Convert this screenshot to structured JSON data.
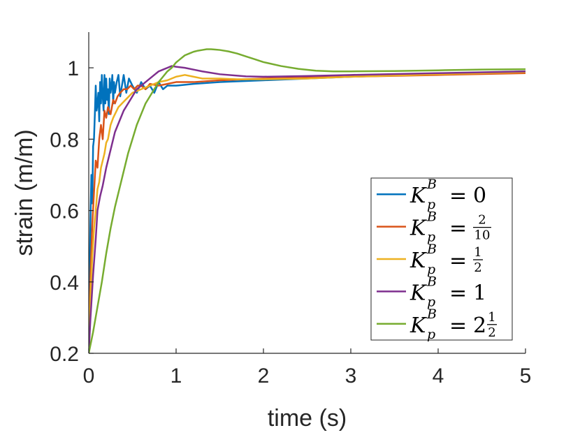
{
  "chart_data": {
    "type": "line",
    "xlabel": "time (s)",
    "ylabel": "strain (m/m)",
    "xlim": [
      0,
      5
    ],
    "ylim": [
      0.2,
      1.1
    ],
    "xticks": [
      0,
      1,
      2,
      3,
      4,
      5
    ],
    "xtick_labels": [
      "0",
      "1",
      "2",
      "3",
      "4",
      "5"
    ],
    "yticks": [
      0.2,
      0.4,
      0.6,
      0.8,
      1.0
    ],
    "ytick_labels": [
      "0.2",
      "0.4",
      "0.6",
      "0.8",
      "1"
    ],
    "grid": false,
    "legend_position": "lower-right",
    "series": [
      {
        "name": "K_p^B = 0",
        "legend": {
          "sym": "K",
          "sub": "p",
          "sup": "B",
          "value": "0"
        },
        "color": "#0072BD",
        "x": [
          0,
          0.01,
          0.02,
          0.03,
          0.04,
          0.05,
          0.06,
          0.07,
          0.08,
          0.09,
          0.1,
          0.11,
          0.12,
          0.13,
          0.14,
          0.15,
          0.16,
          0.17,
          0.18,
          0.19,
          0.2,
          0.21,
          0.22,
          0.23,
          0.24,
          0.25,
          0.26,
          0.27,
          0.28,
          0.29,
          0.3,
          0.32,
          0.34,
          0.36,
          0.38,
          0.4,
          0.43,
          0.46,
          0.5,
          0.55,
          0.6,
          0.65,
          0.7,
          0.75,
          0.8,
          0.85,
          0.9,
          1.0,
          1.2,
          1.5,
          2.0,
          3.0,
          4.0,
          5.0
        ],
        "y": [
          0.2,
          0.42,
          0.58,
          0.7,
          0.62,
          0.78,
          0.8,
          0.87,
          0.95,
          0.88,
          0.9,
          0.93,
          0.85,
          0.96,
          0.9,
          0.98,
          0.92,
          0.88,
          0.98,
          0.9,
          0.97,
          0.91,
          0.94,
          0.87,
          0.97,
          0.93,
          0.95,
          0.98,
          0.9,
          0.96,
          0.93,
          0.96,
          0.98,
          0.92,
          0.95,
          0.98,
          0.93,
          0.97,
          0.95,
          0.93,
          0.96,
          0.94,
          0.95,
          0.93,
          0.96,
          0.94,
          0.95,
          0.95,
          0.955,
          0.96,
          0.965,
          0.975,
          0.983,
          0.99
        ]
      },
      {
        "name": "K_p^B = 2/10",
        "legend": {
          "sym": "K",
          "sub": "p",
          "sup": "B",
          "frac": [
            "2",
            "10"
          ]
        },
        "color": "#D95319",
        "x": [
          0,
          0.02,
          0.04,
          0.06,
          0.08,
          0.1,
          0.12,
          0.14,
          0.16,
          0.18,
          0.2,
          0.22,
          0.25,
          0.28,
          0.3,
          0.33,
          0.36,
          0.4,
          0.44,
          0.48,
          0.52,
          0.56,
          0.6,
          0.65,
          0.7,
          0.8,
          0.9,
          1.0,
          1.2,
          1.5,
          2.0,
          3.0,
          4.0,
          5.0
        ],
        "y": [
          0.2,
          0.42,
          0.56,
          0.65,
          0.74,
          0.72,
          0.8,
          0.84,
          0.8,
          0.88,
          0.86,
          0.89,
          0.87,
          0.91,
          0.9,
          0.92,
          0.93,
          0.94,
          0.94,
          0.95,
          0.94,
          0.95,
          0.95,
          0.94,
          0.955,
          0.95,
          0.955,
          0.96,
          0.96,
          0.965,
          0.97,
          0.975,
          0.98,
          0.985
        ]
      },
      {
        "name": "K_p^B = 1/2",
        "legend": {
          "sym": "K",
          "sub": "p",
          "sup": "B",
          "frac": [
            "1",
            "2"
          ]
        },
        "color": "#EDB120",
        "x": [
          0,
          0.02,
          0.04,
          0.06,
          0.08,
          0.1,
          0.12,
          0.14,
          0.16,
          0.18,
          0.2,
          0.22,
          0.25,
          0.28,
          0.3,
          0.34,
          0.38,
          0.42,
          0.46,
          0.5,
          0.55,
          0.6,
          0.65,
          0.7,
          0.75,
          0.8,
          0.9,
          1.0,
          1.1,
          1.2,
          1.3,
          1.5,
          1.7,
          2.0,
          2.5,
          3.0,
          4.0,
          5.0
        ],
        "y": [
          0.2,
          0.36,
          0.47,
          0.55,
          0.6,
          0.66,
          0.68,
          0.72,
          0.74,
          0.76,
          0.79,
          0.8,
          0.84,
          0.86,
          0.87,
          0.89,
          0.9,
          0.91,
          0.92,
          0.93,
          0.935,
          0.94,
          0.945,
          0.95,
          0.955,
          0.96,
          0.965,
          0.975,
          0.98,
          0.975,
          0.97,
          0.97,
          0.968,
          0.968,
          0.97,
          0.975,
          0.982,
          0.988
        ]
      },
      {
        "name": "K_p^B = 1",
        "legend": {
          "sym": "K",
          "sub": "p",
          "sup": "B",
          "value": "1"
        },
        "color": "#7E2F8E",
        "x": [
          0,
          0.02,
          0.05,
          0.08,
          0.1,
          0.13,
          0.16,
          0.2,
          0.25,
          0.3,
          0.35,
          0.4,
          0.45,
          0.5,
          0.55,
          0.6,
          0.65,
          0.7,
          0.75,
          0.8,
          0.85,
          0.9,
          0.95,
          1.0,
          1.1,
          1.2,
          1.3,
          1.5,
          1.8,
          2.0,
          2.5,
          3.0,
          4.0,
          5.0
        ],
        "y": [
          0.2,
          0.3,
          0.42,
          0.52,
          0.6,
          0.64,
          0.67,
          0.72,
          0.77,
          0.82,
          0.85,
          0.88,
          0.9,
          0.92,
          0.94,
          0.95,
          0.96,
          0.97,
          0.98,
          0.99,
          0.995,
          1.0,
          1.005,
          1.003,
          1.0,
          0.995,
          0.99,
          0.982,
          0.976,
          0.975,
          0.977,
          0.98,
          0.985,
          0.99
        ]
      },
      {
        "name": "K_p^B = 2 1/2",
        "legend": {
          "sym": "K",
          "sub": "p",
          "sup": "B",
          "whole": "2",
          "frac": [
            "1",
            "2"
          ]
        },
        "color": "#77AC30",
        "x": [
          0,
          0.05,
          0.1,
          0.15,
          0.2,
          0.25,
          0.3,
          0.35,
          0.4,
          0.45,
          0.5,
          0.55,
          0.6,
          0.65,
          0.7,
          0.75,
          0.8,
          0.85,
          0.9,
          0.95,
          1.0,
          1.05,
          1.1,
          1.15,
          1.2,
          1.25,
          1.3,
          1.35,
          1.4,
          1.45,
          1.5,
          1.6,
          1.7,
          1.8,
          1.9,
          2.0,
          2.2,
          2.4,
          2.6,
          2.8,
          3.0,
          3.5,
          4.0,
          4.5,
          5.0
        ],
        "y": [
          0.2,
          0.26,
          0.33,
          0.4,
          0.48,
          0.55,
          0.61,
          0.66,
          0.71,
          0.76,
          0.8,
          0.84,
          0.87,
          0.9,
          0.92,
          0.94,
          0.96,
          0.975,
          0.99,
          1.0,
          1.015,
          1.025,
          1.035,
          1.04,
          1.045,
          1.048,
          1.05,
          1.052,
          1.052,
          1.051,
          1.05,
          1.046,
          1.04,
          1.032,
          1.024,
          1.016,
          1.005,
          0.997,
          0.992,
          0.99,
          0.99,
          0.991,
          0.993,
          0.995,
          0.996
        ]
      }
    ]
  }
}
